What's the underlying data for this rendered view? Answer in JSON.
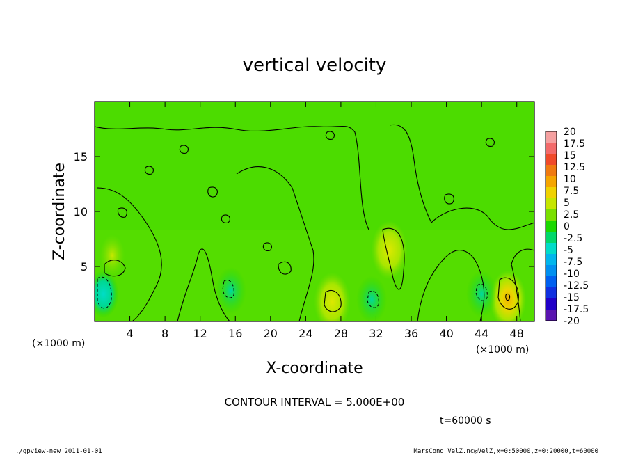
{
  "chart_data": {
    "type": "heatmap",
    "title": "vertical velocity",
    "xlabel": "X-coordinate",
    "ylabel": "Z-coordinate",
    "x_unit": "(×1000 m)",
    "y_unit": "(×1000 m)",
    "xlim": [
      0,
      50
    ],
    "ylim": [
      0,
      20
    ],
    "x_ticks": [
      "4",
      "8",
      "12",
      "16",
      "20",
      "24",
      "28",
      "32",
      "36",
      "40",
      "44",
      "48"
    ],
    "y_ticks": [
      "5",
      "10",
      "15"
    ],
    "colorbar": {
      "labels": [
        "20",
        "17.5",
        "15",
        "12.5",
        "10",
        "7.5",
        "5",
        "2.5",
        "0",
        "-2.5",
        "-5",
        "-7.5",
        "-10",
        "-12.5",
        "-15",
        "-17.5",
        "-20"
      ],
      "colors": [
        "#f5a0a0",
        "#f36a6a",
        "#f04a2a",
        "#f07a10",
        "#f5a500",
        "#f0d200",
        "#c6e600",
        "#7ae000",
        "#1bd800",
        "#00d86a",
        "#00dcc8",
        "#00b6ec",
        "#0090f0",
        "#0060f0",
        "#1030e0",
        "#2000c8",
        "#5a14b0"
      ]
    },
    "features": [
      {
        "kind": "updraft",
        "x": 47,
        "z": 2,
        "value": 7.5
      },
      {
        "kind": "updraft",
        "x": 33.5,
        "z": 6.5,
        "value": 5
      },
      {
        "kind": "updraft",
        "x": 27,
        "z": 1.8,
        "value": 5
      },
      {
        "kind": "updraft",
        "x": 2,
        "z": 6,
        "value": 2.5
      },
      {
        "kind": "downdraft",
        "x": 1,
        "z": 2.5,
        "value": -5
      },
      {
        "kind": "downdraft",
        "x": 15.5,
        "z": 2.8,
        "value": -2.5
      },
      {
        "kind": "downdraft",
        "x": 31.5,
        "z": 2,
        "value": -2.5
      },
      {
        "kind": "downdraft",
        "x": 44,
        "z": 2.5,
        "value": -2.5
      }
    ],
    "contour_interval_text": "CONTOUR INTERVAL = 5.000E+00",
    "time_text": "t=60000  s"
  },
  "footer": {
    "left": "./gpview-new   2011-01-01",
    "right": "MarsCond_VelZ.nc@VelZ,x=0:50000,z=0:20000,t=60000"
  }
}
